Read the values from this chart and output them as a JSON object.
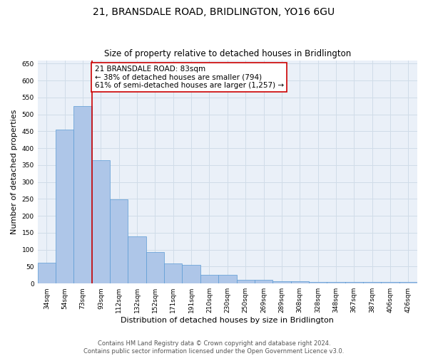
{
  "title": "21, BRANSDALE ROAD, BRIDLINGTON, YO16 6GU",
  "subtitle": "Size of property relative to detached houses in Bridlington",
  "xlabel": "Distribution of detached houses by size in Bridlington",
  "ylabel": "Number of detached properties",
  "footer_line1": "Contains HM Land Registry data © Crown copyright and database right 2024.",
  "footer_line2": "Contains public sector information licensed under the Open Government Licence v3.0.",
  "categories": [
    "34sqm",
    "54sqm",
    "73sqm",
    "93sqm",
    "112sqm",
    "132sqm",
    "152sqm",
    "171sqm",
    "191sqm",
    "210sqm",
    "230sqm",
    "250sqm",
    "269sqm",
    "289sqm",
    "308sqm",
    "328sqm",
    "348sqm",
    "367sqm",
    "387sqm",
    "406sqm",
    "426sqm"
  ],
  "values": [
    62,
    455,
    525,
    365,
    248,
    140,
    92,
    60,
    55,
    25,
    25,
    10,
    12,
    7,
    6,
    5,
    5,
    4,
    5,
    4,
    4
  ],
  "bar_color": "#aec6e8",
  "bar_edge_color": "#5b9bd5",
  "grid_color": "#d0dce8",
  "background_color": "#eaf0f8",
  "annotation_box_text": "21 BRANSDALE ROAD: 83sqm\n← 38% of detached houses are smaller (794)\n61% of semi-detached houses are larger (1,257) →",
  "annotation_box_color": "#ffffff",
  "annotation_box_edge_color": "#cc0000",
  "property_line_x": 2.5,
  "property_line_color": "#cc0000",
  "ylim": [
    0,
    660
  ],
  "yticks": [
    0,
    50,
    100,
    150,
    200,
    250,
    300,
    350,
    400,
    450,
    500,
    550,
    600,
    650
  ],
  "title_fontsize": 10,
  "subtitle_fontsize": 8.5,
  "xlabel_fontsize": 8,
  "ylabel_fontsize": 8,
  "tick_fontsize": 6.5,
  "annotation_fontsize": 7.5,
  "footer_fontsize": 6
}
